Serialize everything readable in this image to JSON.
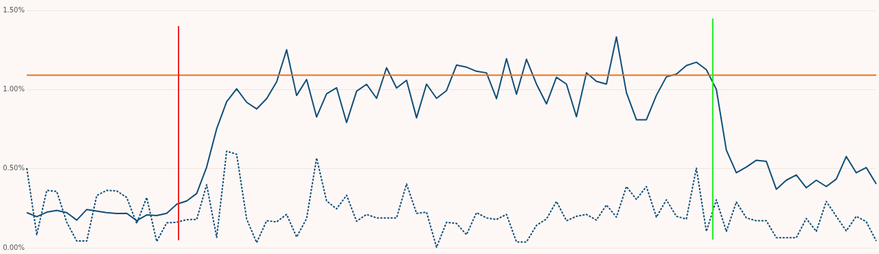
{
  "chart_data": {
    "type": "line",
    "categories": [
      null,
      null,
      null,
      null,
      null,
      null,
      null,
      null,
      null,
      null,
      null,
      null,
      null,
      null,
      null,
      null,
      null,
      null,
      null,
      null,
      null,
      null,
      null,
      null,
      null,
      null,
      null,
      null,
      null,
      null,
      null,
      null,
      null,
      null,
      null,
      null,
      null,
      null,
      null,
      null,
      null,
      null,
      null,
      null,
      null,
      null,
      null,
      null,
      null,
      null,
      null,
      null,
      null,
      null,
      null,
      null,
      null,
      null,
      null,
      null,
      null,
      null,
      null,
      null,
      null,
      null,
      null,
      null,
      null,
      null,
      null,
      null,
      null,
      null,
      null,
      null,
      null,
      null,
      null,
      null,
      null,
      null,
      null,
      null,
      null,
      null
    ],
    "series": [
      {
        "color": "#0e4d78",
        "line_style": "solid",
        "values": [
          0.222,
          0.197,
          0.225,
          0.236,
          0.222,
          0.175,
          0.242,
          0.232,
          0.222,
          0.217,
          0.218,
          0.172,
          0.208,
          0.204,
          0.218,
          0.275,
          0.296,
          0.343,
          0.51,
          0.752,
          0.923,
          1.004,
          0.919,
          0.877,
          0.942,
          1.048,
          1.251,
          0.962,
          1.063,
          0.826,
          0.973,
          1.011,
          0.791,
          0.989,
          1.033,
          0.944,
          1.137,
          1.009,
          1.058,
          0.821,
          1.034,
          0.944,
          0.993,
          1.154,
          1.141,
          1.115,
          1.105,
          0.942,
          1.194,
          0.97,
          1.191,
          1.034,
          0.909,
          1.077,
          1.034,
          0.828,
          1.105,
          1.051,
          1.034,
          1.332,
          0.98,
          0.809,
          0.809,
          0.963,
          1.08,
          1.097,
          1.151,
          1.172,
          1.125,
          1.001,
          0.617,
          0.474,
          0.51,
          0.553,
          0.546,
          0.37,
          0.427,
          0.46,
          0.379,
          0.427,
          0.387,
          0.434,
          0.577,
          0.474,
          0.507,
          0.403
        ]
      },
      {
        "color": "#0e4d78",
        "line_style": "dashed",
        "values": [
          0.503,
          0.083,
          0.363,
          0.356,
          0.161,
          0.043,
          0.043,
          0.33,
          0.363,
          0.359,
          0.318,
          0.154,
          0.318,
          0.04,
          0.158,
          0.161,
          0.178,
          0.179,
          0.399,
          0.066,
          0.61,
          0.591,
          0.182,
          0.033,
          0.171,
          0.164,
          0.211,
          0.068,
          0.185,
          0.567,
          0.296,
          0.246,
          0.332,
          0.168,
          0.211,
          0.189,
          0.189,
          0.189,
          0.403,
          0.218,
          0.225,
          0.004,
          0.161,
          0.154,
          0.083,
          0.222,
          0.189,
          0.179,
          0.211,
          0.037,
          0.037,
          0.142,
          0.182,
          0.293,
          0.171,
          0.199,
          0.211,
          0.175,
          0.271,
          0.194,
          0.387,
          0.306,
          0.387,
          0.194,
          0.303,
          0.199,
          0.182,
          0.503,
          0.104,
          0.303,
          0.104,
          0.289,
          0.189,
          0.171,
          0.171,
          0.064,
          0.064,
          0.064,
          0.185,
          0.104,
          0.293,
          0.199,
          0.107,
          0.199,
          0.165,
          0.043
        ]
      }
    ],
    "ylim": [
      0,
      1.5
    ],
    "yticks": [
      {
        "value": 0,
        "label": "0.00%"
      },
      {
        "value": 0.5,
        "label": "0.50%"
      },
      {
        "value": 1,
        "label": "1.00%"
      },
      {
        "value": 1.5,
        "label": "1.50%"
      }
    ],
    "tick_labels": "y",
    "grid": "y",
    "legend": false,
    "marker": "none",
    "ref_lines": [
      {
        "axis": "y",
        "value": 1.09,
        "color": "#e8731c",
        "line_style": "solid"
      }
    ]
  }
}
